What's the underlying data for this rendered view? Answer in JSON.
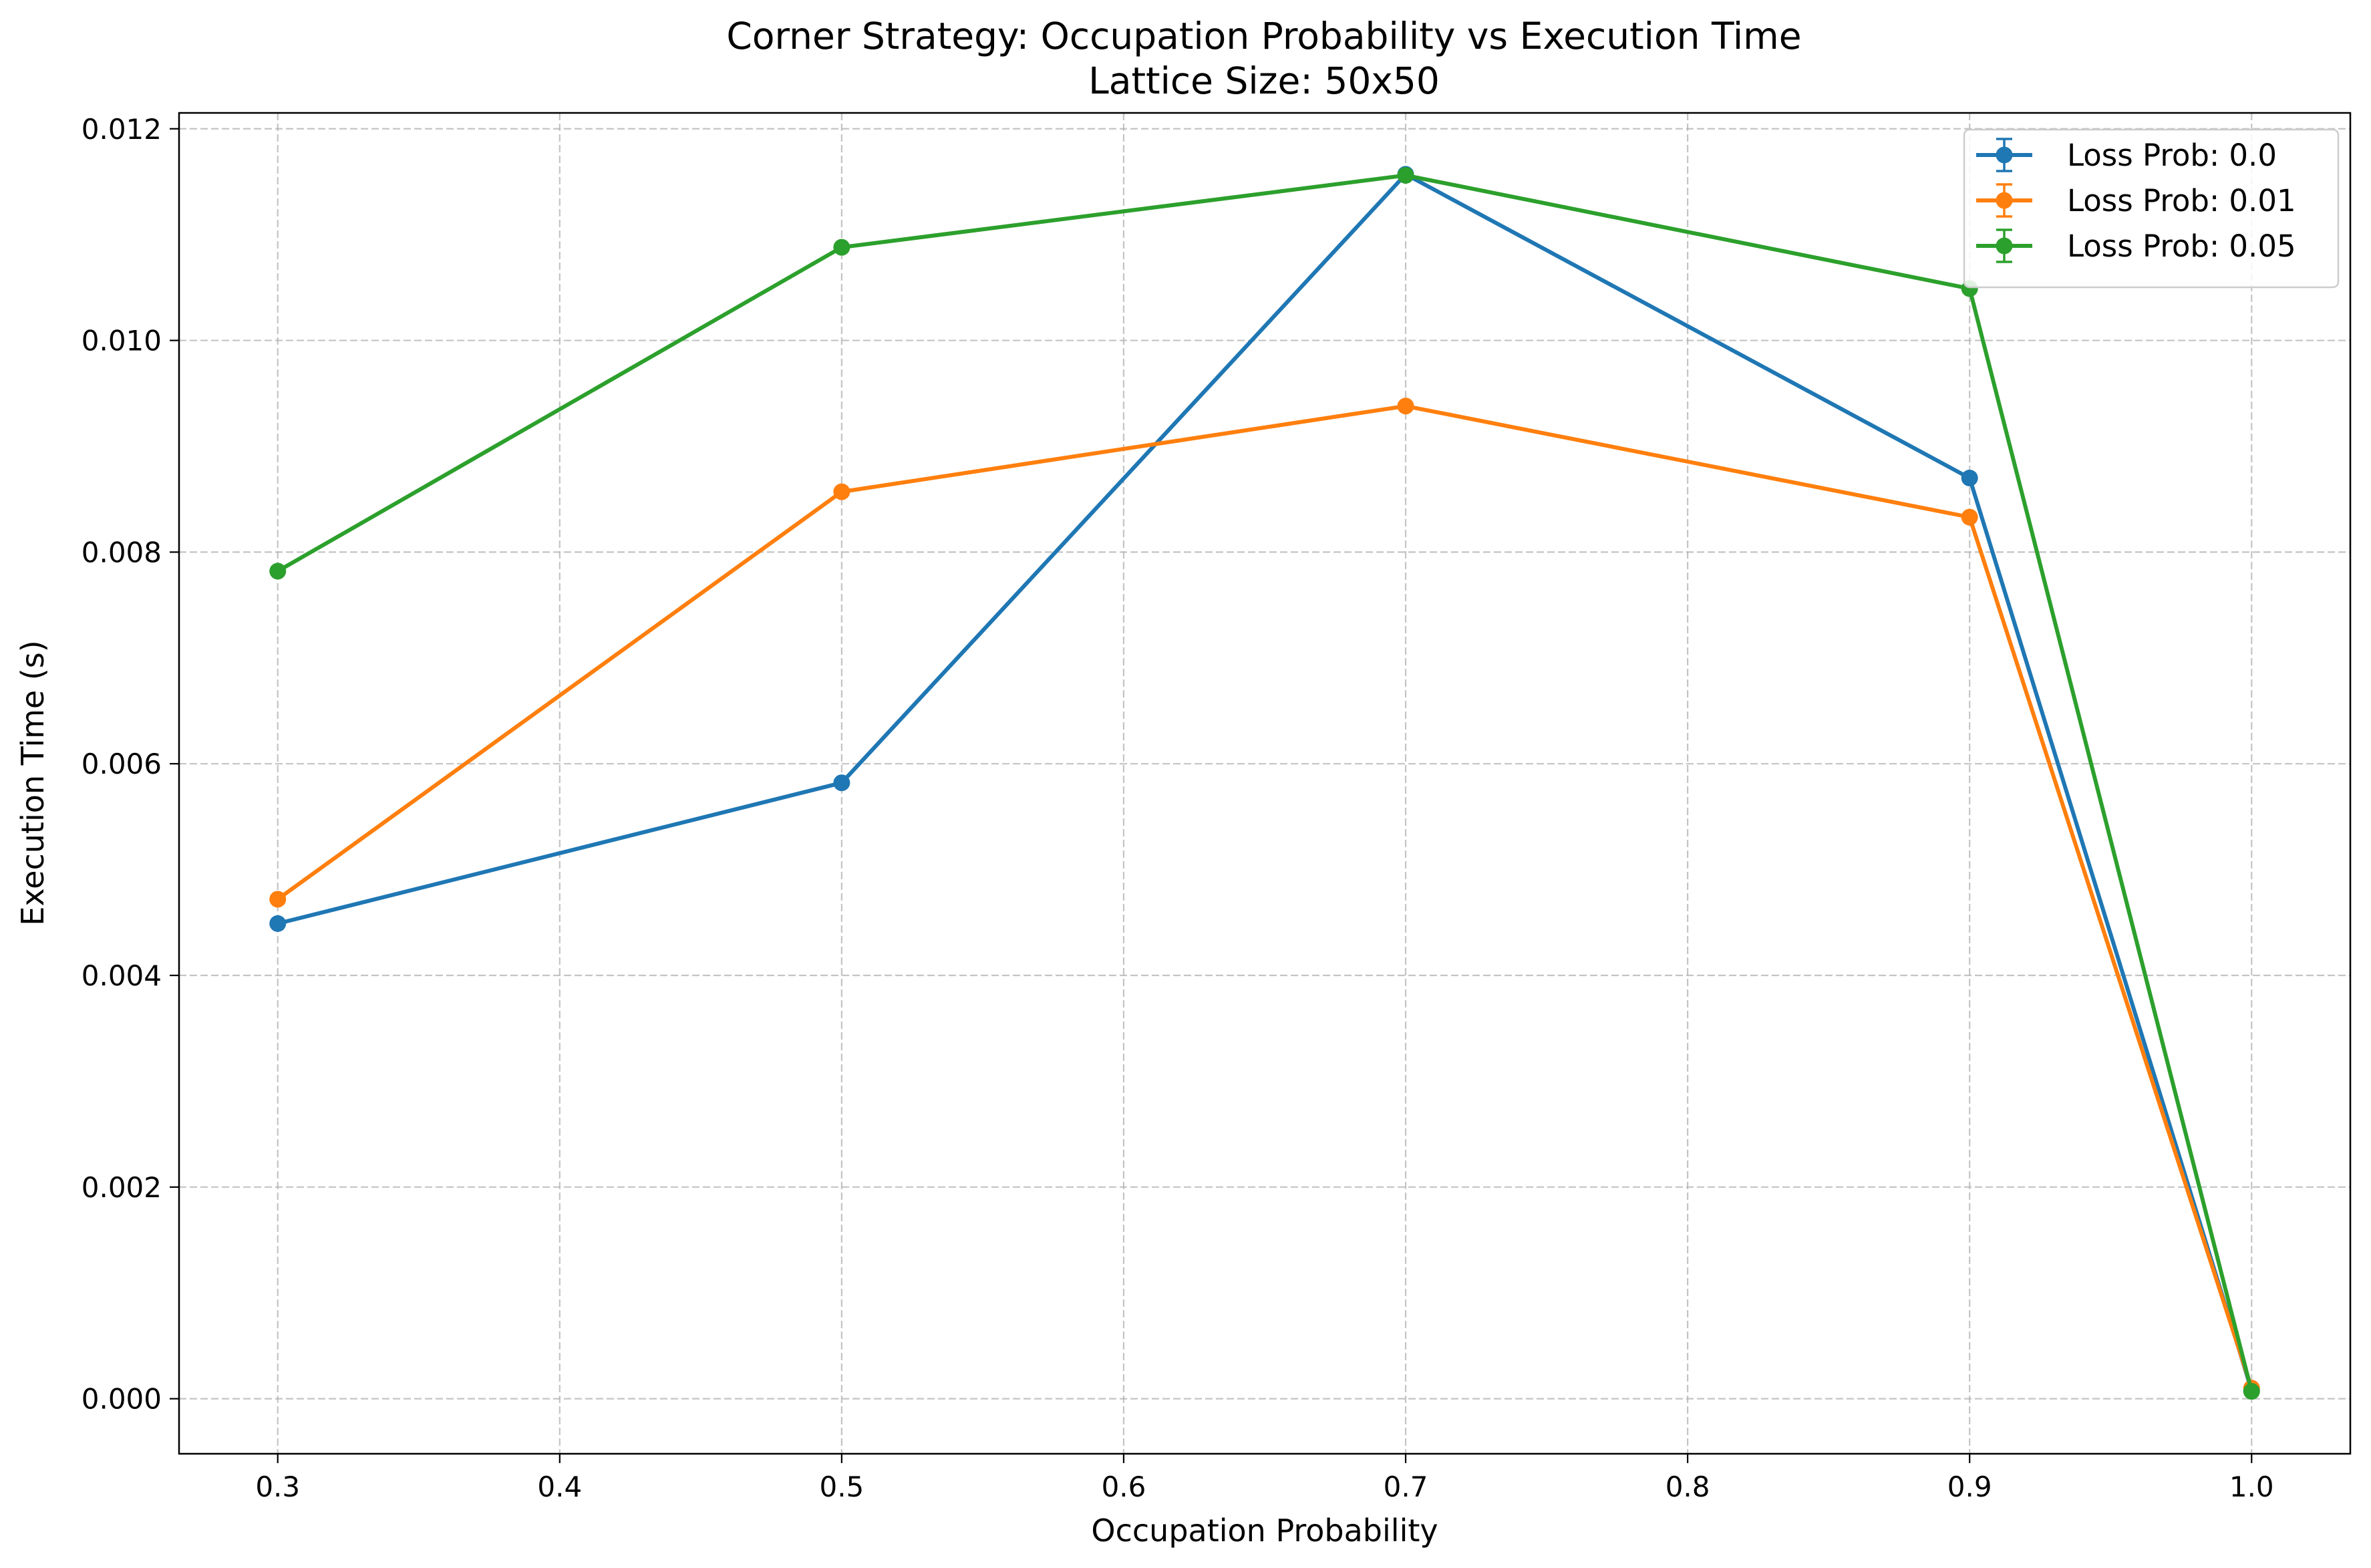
{
  "chart_data": {
    "type": "line",
    "title": "Corner Strategy: Occupation Probability vs Execution Time",
    "subtitle": "Lattice Size: 50x50",
    "xlabel": "Occupation Probability",
    "ylabel": "Execution Time (s)",
    "xlim": [
      0.265,
      1.035
    ],
    "ylim": [
      -0.00052,
      0.01215
    ],
    "x_ticks": [
      "0.3",
      "0.4",
      "0.5",
      "0.6",
      "0.7",
      "0.8",
      "0.9",
      "1.0"
    ],
    "y_ticks": [
      "0.000",
      "0.002",
      "0.004",
      "0.006",
      "0.008",
      "0.010",
      "0.012"
    ],
    "grid": true,
    "grid_style": "dashed",
    "legend_position": "top-right",
    "x": [
      0.3,
      0.5,
      0.7,
      0.9,
      1.0
    ],
    "series": [
      {
        "name": "Loss Prob: 0.0",
        "color": "#1f77b4",
        "values": [
          0.00449,
          0.00582,
          0.01157,
          0.0087,
          8e-05
        ]
      },
      {
        "name": "Loss Prob: 0.01",
        "color": "#ff7f0e",
        "values": [
          0.00472,
          0.00857,
          0.00938,
          0.00833,
          0.0001
        ]
      },
      {
        "name": "Loss Prob: 0.05",
        "color": "#2ca02c",
        "values": [
          0.00782,
          0.01088,
          0.01156,
          0.01049,
          7e-05
        ]
      }
    ]
  }
}
